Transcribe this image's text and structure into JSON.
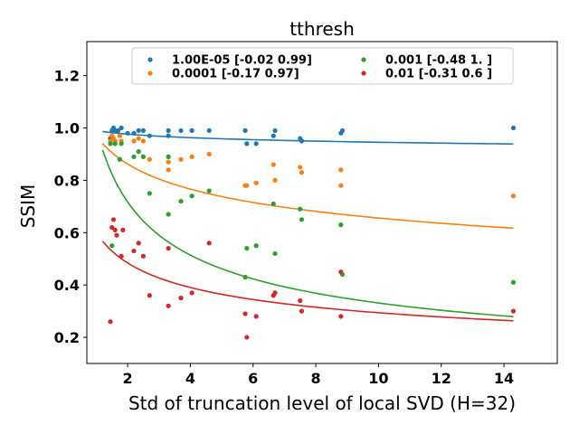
{
  "chart_data": {
    "type": "scatter",
    "title": "tthresh",
    "xlabel": "Std of truncation level of local SVD (H=32)",
    "ylabel": "SSIM",
    "xlim": [
      0.7,
      15.7
    ],
    "ylim": [
      0.1,
      1.33
    ],
    "xticks": [
      2,
      4,
      6,
      8,
      10,
      12,
      14
    ],
    "xtick_labels": [
      "2",
      "4",
      "6",
      "8",
      "10",
      "12",
      "14"
    ],
    "yticks": [
      0.2,
      0.4,
      0.6,
      0.8,
      1.0,
      1.2
    ],
    "ytick_labels": [
      "0.2",
      "0.4",
      "0.6",
      "0.8",
      "1.0",
      "1.2"
    ],
    "grid": false,
    "legend_position": "top-center",
    "series": [
      {
        "name": "1.00E-05 [-0.02  0.99]",
        "color": "#1f77b4",
        "fit": {
          "a": -0.02,
          "b": 0.99
        },
        "points": [
          [
            1.45,
            0.96
          ],
          [
            1.5,
            0.99
          ],
          [
            1.55,
            1.0
          ],
          [
            1.6,
            0.99
          ],
          [
            1.7,
            0.99
          ],
          [
            1.8,
            1.0
          ],
          [
            2.0,
            0.98
          ],
          [
            2.2,
            0.98
          ],
          [
            2.35,
            0.99
          ],
          [
            2.5,
            0.99
          ],
          [
            2.7,
            0.97
          ],
          [
            3.3,
            0.99
          ],
          [
            3.3,
            0.97
          ],
          [
            3.7,
            0.99
          ],
          [
            4.05,
            0.99
          ],
          [
            4.6,
            0.99
          ],
          [
            5.75,
            0.99
          ],
          [
            5.8,
            0.94
          ],
          [
            6.1,
            0.94
          ],
          [
            6.65,
            0.97
          ],
          [
            6.7,
            0.99
          ],
          [
            7.5,
            0.96
          ],
          [
            7.55,
            0.95
          ],
          [
            8.8,
            0.98
          ],
          [
            8.85,
            0.99
          ],
          [
            14.3,
            1.0
          ]
        ]
      },
      {
        "name": "0.0001 [-0.17  0.97]",
        "color": "#ff7f0e",
        "fit": {
          "a": -0.17,
          "b": 0.97
        },
        "points": [
          [
            1.45,
            0.95
          ],
          [
            1.5,
            0.97
          ],
          [
            1.55,
            0.96
          ],
          [
            1.6,
            0.95
          ],
          [
            1.75,
            0.97
          ],
          [
            1.8,
            0.95
          ],
          [
            2.2,
            0.95
          ],
          [
            2.35,
            0.96
          ],
          [
            2.5,
            0.95
          ],
          [
            2.7,
            0.88
          ],
          [
            2.35,
            0.91
          ],
          [
            3.3,
            0.84
          ],
          [
            3.3,
            0.87
          ],
          [
            3.7,
            0.88
          ],
          [
            4.05,
            0.89
          ],
          [
            4.6,
            0.9
          ],
          [
            5.75,
            0.78
          ],
          [
            5.8,
            0.78
          ],
          [
            6.1,
            0.79
          ],
          [
            6.65,
            0.86
          ],
          [
            6.7,
            0.8
          ],
          [
            7.5,
            0.85
          ],
          [
            7.55,
            0.83
          ],
          [
            8.8,
            0.84
          ],
          [
            8.8,
            0.78
          ],
          [
            14.3,
            0.74
          ]
        ]
      },
      {
        "name": "0.001 [-0.48  1.  ]",
        "color": "#2ca02c",
        "fit": {
          "a": -0.48,
          "b": 1.0
        },
        "points": [
          [
            1.45,
            0.94
          ],
          [
            1.5,
            0.55
          ],
          [
            1.6,
            0.94
          ],
          [
            1.75,
            0.88
          ],
          [
            1.8,
            0.94
          ],
          [
            2.2,
            0.89
          ],
          [
            2.35,
            0.91
          ],
          [
            2.5,
            0.89
          ],
          [
            2.7,
            0.75
          ],
          [
            3.3,
            0.89
          ],
          [
            3.3,
            0.67
          ],
          [
            3.7,
            0.72
          ],
          [
            4.05,
            0.74
          ],
          [
            4.6,
            0.76
          ],
          [
            5.75,
            0.43
          ],
          [
            5.8,
            0.54
          ],
          [
            6.1,
            0.55
          ],
          [
            6.65,
            0.71
          ],
          [
            6.7,
            0.52
          ],
          [
            7.5,
            0.69
          ],
          [
            7.55,
            0.65
          ],
          [
            8.8,
            0.63
          ],
          [
            8.85,
            0.44
          ],
          [
            14.3,
            0.41
          ]
        ]
      },
      {
        "name": "0.01 [-0.31  0.6 ]",
        "color": "#d62728",
        "fit": {
          "a": -0.31,
          "b": 0.6
        },
        "points": [
          [
            1.45,
            0.26
          ],
          [
            1.5,
            0.62
          ],
          [
            1.55,
            0.65
          ],
          [
            1.6,
            0.61
          ],
          [
            1.65,
            0.59
          ],
          [
            1.8,
            0.51
          ],
          [
            1.85,
            0.61
          ],
          [
            2.2,
            0.53
          ],
          [
            2.35,
            0.56
          ],
          [
            2.5,
            0.51
          ],
          [
            2.7,
            0.36
          ],
          [
            3.3,
            0.54
          ],
          [
            3.3,
            0.32
          ],
          [
            3.7,
            0.35
          ],
          [
            4.05,
            0.37
          ],
          [
            4.6,
            0.56
          ],
          [
            5.75,
            0.29
          ],
          [
            5.8,
            0.2
          ],
          [
            6.1,
            0.28
          ],
          [
            6.65,
            0.36
          ],
          [
            6.7,
            0.37
          ],
          [
            7.5,
            0.34
          ],
          [
            7.55,
            0.3
          ],
          [
            8.8,
            0.45
          ],
          [
            8.8,
            0.28
          ],
          [
            14.3,
            0.3
          ]
        ]
      }
    ]
  }
}
